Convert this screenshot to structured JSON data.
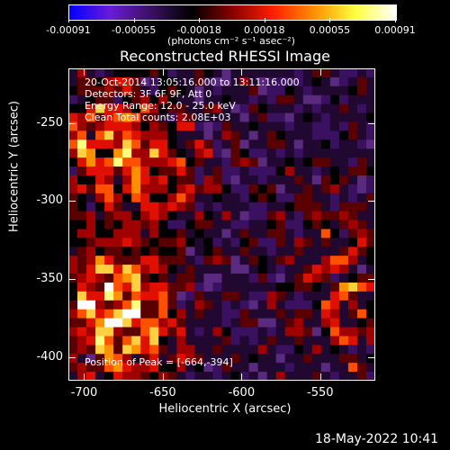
{
  "colorbar": {
    "tick_labels": [
      "-0.00091",
      "-0.00055",
      "-0.00018",
      "0.00018",
      "0.00055",
      "0.00091"
    ],
    "unit_label": "(photons cm⁻² s⁻¹ asec⁻²)",
    "colors": [
      "#0000ff",
      "#6a1bd8",
      "#3a1060",
      "#000000",
      "#8a0000",
      "#ff2000",
      "#ff9000",
      "#ffff40",
      "#ffffff"
    ]
  },
  "title": "Reconstructed RHESSI Image",
  "info": {
    "time_range": "20-Oct-2014 13:05:16.000 to 13:11:16.000",
    "detectors": "Detectors: 3F 6F 9F, Att 0",
    "energy_range": "Energy Range: 12.0 - 25.0 keV",
    "clean_counts": "Clean     Total counts: 2.08E+03",
    "peak": "Position of Peak = [-664,-394]"
  },
  "axes": {
    "xlabel": "Heliocentric X (arcsec)",
    "ylabel": "Heliocentric Y (arcsec)",
    "xticks": [
      "-700",
      "-650",
      "-600",
      "-550"
    ],
    "yticks": [
      "-250",
      "-300",
      "-350",
      "-400"
    ]
  },
  "footer": {
    "date": "18-May-2022 10:41"
  },
  "chart_data": {
    "type": "heatmap",
    "title": "Reconstructed RHESSI Image",
    "xlabel": "Heliocentric X (arcsec)",
    "ylabel": "Heliocentric Y (arcsec)",
    "xlim": [
      -710,
      -515
    ],
    "ylim": [
      -415,
      -215
    ],
    "colorbar_range": [
      -0.00091,
      0.00091
    ],
    "peak_position": [
      -664,
      -394
    ],
    "total_counts": "2.08E+03"
  }
}
